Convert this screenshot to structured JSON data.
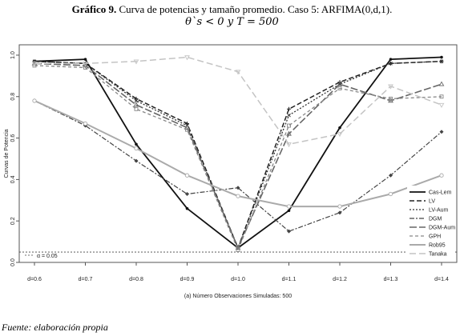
{
  "title": {
    "label": "Gráfico 9.",
    "text": "Curva de potencias y tamaño promedio. Caso 5: ARFIMA(0,d,1).",
    "subtitle": "θ`s < 0 y T  =  500"
  },
  "source": "Fuente: elaboración propia",
  "chart_data": {
    "type": "line",
    "xlabel": "(a) Número Observaciones Simuladas: 500",
    "ylabel": "Curvas de Potencia",
    "categories": [
      "d=0.6",
      "d=0.7",
      "d=0.8",
      "d=0.9",
      "d=1.0",
      "d=1.1",
      "d=1.2",
      "d=1.3",
      "d=1.4"
    ],
    "ylim": [
      0,
      1.05
    ],
    "yticks": [
      "0.0",
      "0.2",
      "0.4",
      "0.6",
      "0.8",
      "1.0"
    ],
    "reference_line": {
      "value": 0.05,
      "label": "α = 0.05"
    },
    "legend_position": "right",
    "grid": false,
    "series": [
      {
        "name": "Cas-Lem",
        "color": "#111111",
        "dash": "",
        "width": 1.8,
        "marker": "dot",
        "values": [
          0.97,
          0.98,
          0.57,
          0.26,
          0.07,
          0.25,
          0.65,
          0.98,
          0.99
        ]
      },
      {
        "name": "LV",
        "color": "#222222",
        "dash": "6,3",
        "width": 1.5,
        "marker": "plus",
        "values": [
          0.97,
          0.96,
          0.79,
          0.67,
          0.07,
          0.74,
          0.87,
          0.96,
          0.97
        ]
      },
      {
        "name": "LV-Aum",
        "color": "#333333",
        "dash": "2,2",
        "width": 1.3,
        "marker": "x",
        "values": [
          0.97,
          0.96,
          0.78,
          0.66,
          0.07,
          0.71,
          0.86,
          0.96,
          0.97
        ]
      },
      {
        "name": "DGM",
        "color": "#444444",
        "dash": "6,2,2,2",
        "width": 1.2,
        "marker": "diamond",
        "values": [
          0.78,
          0.66,
          0.49,
          0.33,
          0.36,
          0.15,
          0.24,
          0.42,
          0.63
        ]
      },
      {
        "name": "DGM-Aum",
        "color": "#666666",
        "dash": "9,3",
        "width": 1.6,
        "marker": "triangle",
        "values": [
          0.96,
          0.95,
          0.76,
          0.65,
          0.07,
          0.62,
          0.86,
          0.78,
          0.86
        ]
      },
      {
        "name": "GPH",
        "color": "#888888",
        "dash": "4,3",
        "width": 1.3,
        "marker": "square",
        "values": [
          0.95,
          0.94,
          0.74,
          0.64,
          0.06,
          0.66,
          0.84,
          0.79,
          0.8
        ]
      },
      {
        "name": "Rob95",
        "color": "#aaaaaa",
        "dash": "",
        "width": 2.0,
        "marker": "circle",
        "values": [
          0.78,
          0.67,
          0.55,
          0.42,
          0.32,
          0.27,
          0.27,
          0.33,
          0.42
        ]
      },
      {
        "name": "Tanaka",
        "color": "#c4c4c4",
        "dash": "8,4",
        "width": 1.5,
        "marker": "invtriangle",
        "values": [
          0.96,
          0.96,
          0.97,
          0.99,
          0.92,
          0.57,
          0.62,
          0.85,
          0.76
        ]
      }
    ]
  }
}
